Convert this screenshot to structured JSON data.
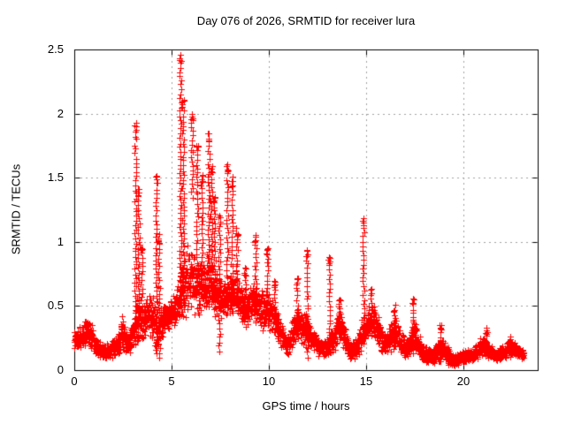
{
  "page": {
    "background": "#ffffff"
  },
  "chart_data": {
    "type": "scatter",
    "title": "Day 076 of 2026, SRMTID for receiver lura",
    "xlabel": "GPS time / hours",
    "ylabel": "SRMTID / TECUs",
    "xlim": [
      0,
      23.8
    ],
    "ylim": [
      0,
      2.5
    ],
    "xticks": [
      0,
      5,
      10,
      15,
      20
    ],
    "xtick_labels": [
      "0",
      "5",
      "10",
      "15",
      "20"
    ],
    "yticks": [
      0,
      0.5,
      1,
      1.5,
      2,
      2.5
    ],
    "ytick_labels": [
      "0",
      "0.5",
      "1",
      "1.5",
      "2",
      "2.5"
    ],
    "grid": true,
    "grid_style": "dotted",
    "grid_color": "#a0a0a0",
    "axis_color": "#000000",
    "marker": "plus",
    "marker_color": "#ff0000",
    "marker_size_px": 7,
    "x_data_end": 23.1,
    "step": 0.015,
    "seed": 7,
    "y_max_observed": 2.47,
    "envelope": [
      [
        0.0,
        0.14,
        0.3
      ],
      [
        0.3,
        0.16,
        0.34
      ],
      [
        0.6,
        0.18,
        0.42
      ],
      [
        0.9,
        0.15,
        0.38
      ],
      [
        1.1,
        0.1,
        0.26
      ],
      [
        1.5,
        0.08,
        0.2
      ],
      [
        1.9,
        0.09,
        0.22
      ],
      [
        2.2,
        0.12,
        0.3
      ],
      [
        2.45,
        0.15,
        0.45
      ],
      [
        2.6,
        0.13,
        0.38
      ],
      [
        2.8,
        0.1,
        0.28
      ],
      [
        3.0,
        0.14,
        0.45
      ],
      [
        3.2,
        0.16,
        0.6
      ],
      [
        3.5,
        0.2,
        0.55
      ],
      [
        3.8,
        0.3,
        0.62
      ],
      [
        4.0,
        0.22,
        0.58
      ],
      [
        4.2,
        0.12,
        0.55
      ],
      [
        4.5,
        0.22,
        0.52
      ],
      [
        4.8,
        0.3,
        0.55
      ],
      [
        5.1,
        0.3,
        0.62
      ],
      [
        5.4,
        0.35,
        0.72
      ],
      [
        5.7,
        0.4,
        1.02
      ],
      [
        6.0,
        0.42,
        0.98
      ],
      [
        6.3,
        0.4,
        0.88
      ],
      [
        6.6,
        0.42,
        0.88
      ],
      [
        6.9,
        0.45,
        1.0
      ],
      [
        7.1,
        0.42,
        0.85
      ],
      [
        7.4,
        0.35,
        0.75
      ],
      [
        7.7,
        0.38,
        0.72
      ],
      [
        8.0,
        0.4,
        0.75
      ],
      [
        8.3,
        0.38,
        0.85
      ],
      [
        8.6,
        0.35,
        0.68
      ],
      [
        8.9,
        0.33,
        0.62
      ],
      [
        9.2,
        0.35,
        0.72
      ],
      [
        9.5,
        0.3,
        0.62
      ],
      [
        9.8,
        0.3,
        0.64
      ],
      [
        10.1,
        0.28,
        0.58
      ],
      [
        10.4,
        0.22,
        0.48
      ],
      [
        10.7,
        0.13,
        0.35
      ],
      [
        11.0,
        0.1,
        0.3
      ],
      [
        11.3,
        0.16,
        0.45
      ],
      [
        11.6,
        0.2,
        0.52
      ],
      [
        11.9,
        0.18,
        0.45
      ],
      [
        12.2,
        0.13,
        0.33
      ],
      [
        12.6,
        0.1,
        0.27
      ],
      [
        13.0,
        0.08,
        0.25
      ],
      [
        13.3,
        0.13,
        0.38
      ],
      [
        13.6,
        0.2,
        0.5
      ],
      [
        13.9,
        0.14,
        0.38
      ],
      [
        14.2,
        0.06,
        0.22
      ],
      [
        14.5,
        0.08,
        0.26
      ],
      [
        14.8,
        0.15,
        0.4
      ],
      [
        15.1,
        0.22,
        0.5
      ],
      [
        15.35,
        0.24,
        0.58
      ],
      [
        15.6,
        0.16,
        0.44
      ],
      [
        15.9,
        0.1,
        0.3
      ],
      [
        16.2,
        0.13,
        0.36
      ],
      [
        16.5,
        0.17,
        0.46
      ],
      [
        16.8,
        0.11,
        0.32
      ],
      [
        17.1,
        0.08,
        0.24
      ],
      [
        17.4,
        0.13,
        0.44
      ],
      [
        17.7,
        0.09,
        0.3
      ],
      [
        18.0,
        0.05,
        0.2
      ],
      [
        18.4,
        0.04,
        0.16
      ],
      [
        18.8,
        0.07,
        0.28
      ],
      [
        19.1,
        0.05,
        0.24
      ],
      [
        19.4,
        0.02,
        0.13
      ],
      [
        19.8,
        0.04,
        0.14
      ],
      [
        20.2,
        0.05,
        0.17
      ],
      [
        20.6,
        0.07,
        0.2
      ],
      [
        21.0,
        0.1,
        0.28
      ],
      [
        21.3,
        0.08,
        0.22
      ],
      [
        21.6,
        0.06,
        0.17
      ],
      [
        22.0,
        0.08,
        0.2
      ],
      [
        22.3,
        0.1,
        0.25
      ],
      [
        22.6,
        0.1,
        0.22
      ],
      [
        23.0,
        0.08,
        0.18
      ],
      [
        23.1,
        0.08,
        0.16
      ]
    ],
    "spikes": [
      [
        3.15,
        1.93,
        0.3
      ],
      [
        3.3,
        1.42,
        0.35
      ],
      [
        3.45,
        0.95,
        0.4
      ],
      [
        4.2,
        1.52,
        0.12
      ],
      [
        4.35,
        1.05,
        0.1
      ],
      [
        5.45,
        2.47,
        0.45
      ],
      [
        5.6,
        2.12,
        0.5
      ],
      [
        6.05,
        2.0,
        1.35
      ],
      [
        6.3,
        1.75,
        0.6
      ],
      [
        6.55,
        1.52,
        0.6
      ],
      [
        6.9,
        1.85,
        0.5
      ],
      [
        7.05,
        1.6,
        0.55
      ],
      [
        7.2,
        1.35,
        0.5
      ],
      [
        7.45,
        1.2,
        0.15
      ],
      [
        7.85,
        1.6,
        0.5
      ],
      [
        8.1,
        1.5,
        0.45
      ],
      [
        8.35,
        1.1,
        0.5
      ],
      [
        8.75,
        0.8,
        0.35
      ],
      [
        9.3,
        1.05,
        0.4
      ],
      [
        9.9,
        0.95,
        0.35
      ],
      [
        10.3,
        0.7,
        0.3
      ],
      [
        11.45,
        0.72,
        0.25
      ],
      [
        11.95,
        0.93,
        0.1
      ],
      [
        13.1,
        0.88,
        0.12
      ],
      [
        13.6,
        0.55,
        0.25
      ],
      [
        14.85,
        1.18,
        0.2
      ],
      [
        15.25,
        0.63,
        0.3
      ],
      [
        16.45,
        0.5,
        0.2
      ],
      [
        17.4,
        0.55,
        0.12
      ],
      [
        18.8,
        0.36,
        0.08
      ],
      [
        21.15,
        0.33,
        0.1
      ],
      [
        22.35,
        0.26,
        0.1
      ]
    ]
  }
}
